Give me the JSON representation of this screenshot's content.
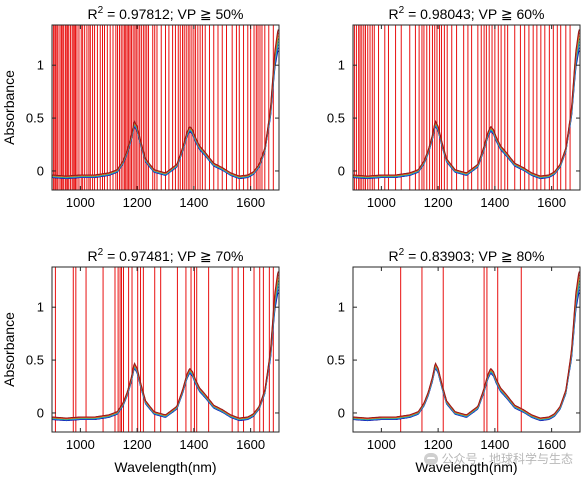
{
  "figure": {
    "watermark": "公众号 · 地球科学与生态"
  },
  "chart_data": [
    {
      "type": "line",
      "title": "R² = 0.97812; VP ≥ 50%",
      "title_r2": "0.97812",
      "title_vp": "50%",
      "ylabel": "Absorbance",
      "xlabel": "",
      "xlim": [
        900,
        1700
      ],
      "ylim": [
        -0.18,
        1.38
      ],
      "xticks": [
        1000,
        1200,
        1400,
        1600
      ],
      "yticks": [
        0,
        0.5,
        1
      ],
      "xtick_labels": [
        "1000",
        "1200",
        "1400",
        "1600"
      ],
      "ytick_labels": [
        "0",
        "0.5",
        "1"
      ],
      "selected_wavelengths": [
        905,
        910,
        912,
        917,
        921,
        928,
        933,
        936,
        941,
        947,
        950,
        955,
        959,
        965,
        971,
        975,
        980,
        983,
        988,
        995,
        1003,
        1008,
        1015,
        1023,
        1030,
        1035,
        1043,
        1050,
        1060,
        1070,
        1078,
        1085,
        1095,
        1105,
        1115,
        1125,
        1131,
        1138,
        1144,
        1150,
        1156,
        1160,
        1165,
        1170,
        1175,
        1180,
        1186,
        1192,
        1197,
        1203,
        1209,
        1215,
        1222,
        1228,
        1234,
        1240,
        1255,
        1262,
        1270,
        1285,
        1300,
        1312,
        1325,
        1335,
        1345,
        1352,
        1360,
        1366,
        1373,
        1380,
        1386,
        1393,
        1400,
        1406,
        1414,
        1422,
        1430,
        1440,
        1455,
        1470,
        1485,
        1500,
        1515,
        1535,
        1550,
        1560,
        1575,
        1590,
        1600,
        1612,
        1620,
        1626,
        1633,
        1640,
        1650,
        1664,
        1680
      ]
    },
    {
      "type": "line",
      "title": "R² = 0.98043; VP ≥ 60%",
      "title_r2": "0.98043",
      "title_vp": "60%",
      "ylabel": "",
      "xlabel": "",
      "xlim": [
        900,
        1700
      ],
      "ylim": [
        -0.18,
        1.38
      ],
      "xticks": [
        1000,
        1200,
        1400,
        1600
      ],
      "yticks": [
        0,
        0.5,
        1
      ],
      "xtick_labels": [
        "1000",
        "1200",
        "1400",
        "1600"
      ],
      "ytick_labels": [
        "0",
        "0.5",
        "1"
      ],
      "selected_wavelengths": [
        905,
        912,
        920,
        925,
        931,
        938,
        944,
        952,
        960,
        968,
        975,
        990,
        1012,
        1025,
        1050,
        1070,
        1100,
        1120,
        1133,
        1143,
        1150,
        1160,
        1170,
        1180,
        1188,
        1196,
        1205,
        1212,
        1222,
        1232,
        1248,
        1265,
        1290,
        1305,
        1318,
        1340,
        1352,
        1362,
        1370,
        1380,
        1390,
        1400,
        1412,
        1422,
        1435,
        1445,
        1470,
        1490,
        1505,
        1520,
        1535,
        1548,
        1562,
        1576,
        1592,
        1606,
        1620,
        1632,
        1650,
        1665
      ]
    },
    {
      "type": "line",
      "title": "R² = 0.97481; VP ≥ 70%",
      "title_r2": "0.97481",
      "title_vp": "70%",
      "ylabel": "Absorbance",
      "xlabel": "Wavelength(nm)",
      "xlim": [
        900,
        1700
      ],
      "ylim": [
        -0.18,
        1.38
      ],
      "xticks": [
        1000,
        1200,
        1400,
        1600
      ],
      "yticks": [
        0,
        0.5,
        1
      ],
      "xtick_labels": [
        "1000",
        "1200",
        "1400",
        "1600"
      ],
      "ytick_labels": [
        "0",
        "0.5",
        "1"
      ],
      "selected_wavelengths": [
        912,
        975,
        984,
        1020,
        1080,
        1122,
        1133,
        1140,
        1145,
        1152,
        1170,
        1182,
        1202,
        1212,
        1222,
        1262,
        1283,
        1342,
        1372,
        1390,
        1402,
        1410,
        1452,
        1535,
        1556,
        1575,
        1612,
        1632,
        1645,
        1666,
        1680
      ]
    },
    {
      "type": "line",
      "title": "R² = 0.83903; VP ≥ 80%",
      "title_r2": "0.83903",
      "title_vp": "80%",
      "ylabel": "",
      "xlabel": "Wavelength(nm)",
      "xlim": [
        900,
        1700
      ],
      "ylim": [
        -0.18,
        1.38
      ],
      "xticks": [
        1000,
        1200,
        1400,
        1600
      ],
      "yticks": [
        0,
        0.5,
        1
      ],
      "xtick_labels": [
        "1000",
        "1200",
        "1400",
        "1600"
      ],
      "ytick_labels": [
        "0",
        "0.5",
        "1"
      ],
      "selected_wavelengths": [
        1068,
        1143,
        1218,
        1362,
        1372,
        1410,
        1493
      ]
    }
  ],
  "spectra": {
    "wavelength_nm": [
      900,
      950,
      1000,
      1050,
      1100,
      1130,
      1150,
      1165,
      1180,
      1190,
      1200,
      1215,
      1230,
      1260,
      1300,
      1340,
      1360,
      1375,
      1385,
      1395,
      1405,
      1420,
      1440,
      1470,
      1500,
      1530,
      1560,
      1590,
      1610,
      1630,
      1650,
      1670,
      1685,
      1695,
      1700
    ],
    "base_absorbance": [
      -0.05,
      -0.06,
      -0.05,
      -0.05,
      -0.03,
      0.0,
      0.08,
      0.18,
      0.32,
      0.45,
      0.4,
      0.24,
      0.1,
      0.0,
      -0.03,
      0.05,
      0.2,
      0.34,
      0.4,
      0.37,
      0.3,
      0.22,
      0.16,
      0.06,
      0.02,
      -0.03,
      -0.06,
      -0.05,
      -0.02,
      0.05,
      0.2,
      0.55,
      1.05,
      1.22,
      1.25
    ],
    "n_samples": 8,
    "colors": [
      "#0a0a8c",
      "#1f2fd6",
      "#1f88e0",
      "#23b3c7",
      "#2aa35a",
      "#f0a020",
      "#e0402a",
      "#9a1a1a"
    ]
  }
}
